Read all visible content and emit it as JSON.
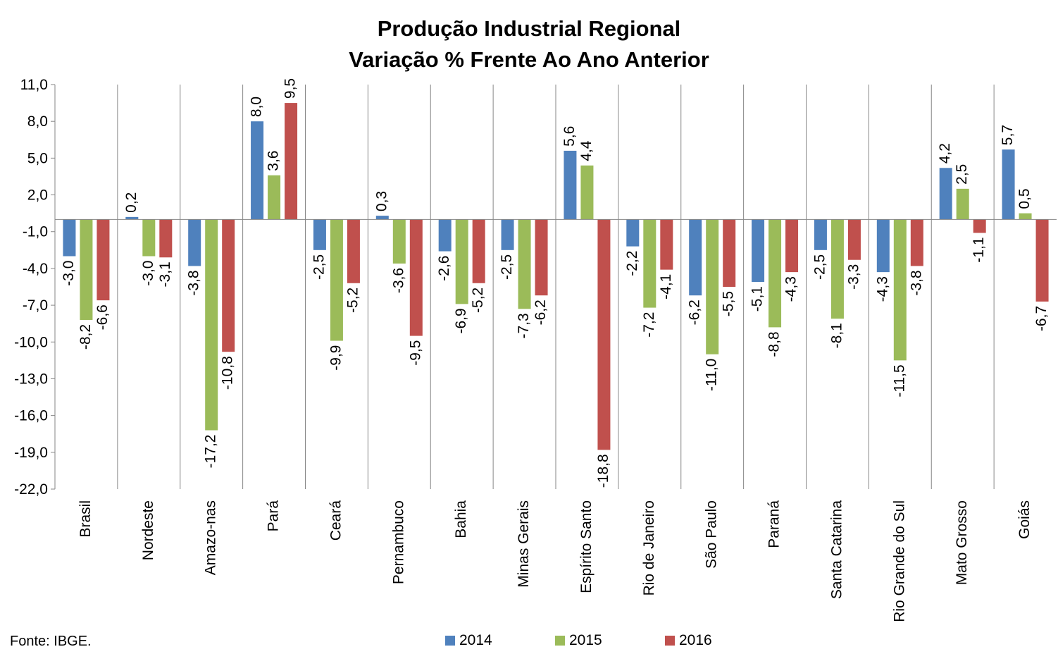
{
  "title": "Produção Industrial Regional",
  "subtitle": "Variação % Frente Ao Ano Anterior",
  "source": "Fonte: IBGE.",
  "colors": {
    "2014": "#4F81BD",
    "2015": "#9BBB59",
    "2016": "#C0504D",
    "axis": "#868686"
  },
  "chart_data": {
    "type": "bar",
    "title": "Produção Industrial Regional",
    "subtitle": "Variação % Frente Ao Ano Anterior",
    "categories": [
      "Brasil",
      "Nordeste",
      "Amazo-nas",
      "Pará",
      "Ceará",
      "Pernambuco",
      "Bahia",
      "Minas Gerais",
      "Espírito Santo",
      "Rio de Janeiro",
      "São Paulo",
      "Paraná",
      "Santa Catarina",
      "Rio Grande do Sul",
      "Mato Grosso",
      "Goiás"
    ],
    "series": [
      {
        "name": "2014",
        "values": [
          -3.0,
          0.2,
          -3.8,
          8.0,
          -2.5,
          0.3,
          -2.6,
          -2.5,
          5.6,
          -2.2,
          -6.2,
          -5.1,
          -2.5,
          -4.3,
          4.2,
          5.7
        ],
        "labels": [
          "-3,0",
          "0,2",
          "-3,8",
          "8,0",
          "-2,5",
          "0,3",
          "-2,6",
          "-2,5",
          "5,6",
          "-2,2",
          "-6,2",
          "-5,1",
          "-2,5",
          "-4,3",
          "4,2",
          "5,7"
        ]
      },
      {
        "name": "2015",
        "values": [
          -8.2,
          -3.0,
          -17.2,
          3.6,
          -9.9,
          -3.6,
          -6.9,
          -7.3,
          4.4,
          -7.2,
          -11.0,
          -8.8,
          -8.1,
          -11.5,
          2.5,
          0.5
        ],
        "labels": [
          "-8,2",
          "-3,0",
          "-17,2",
          "3,6",
          "-9,9",
          "-3,6",
          "-6,9",
          "-7,3",
          "4,4",
          "-7,2",
          "-11,0",
          "-8,8",
          "-8,1",
          "-11,5",
          "2,5",
          "0,5"
        ]
      },
      {
        "name": "2016",
        "values": [
          -6.6,
          -3.1,
          -10.8,
          9.5,
          -5.2,
          -9.5,
          -5.2,
          -6.2,
          -18.8,
          -4.1,
          -5.5,
          -4.3,
          -3.3,
          -3.8,
          -1.1,
          -6.7
        ],
        "labels": [
          "-6,6",
          "-3,1",
          "-10,8",
          "9,5",
          "-5,2",
          "-9,5",
          "-5,2",
          "-6,2",
          "-18,8",
          "-4,1",
          "-5,5",
          "-4,3",
          "-3,3",
          "-3,8",
          "-1,1",
          "-6,7"
        ]
      }
    ],
    "ylim": [
      -22,
      11
    ],
    "yticks": [
      11,
      8,
      5,
      2,
      -1,
      -4,
      -7,
      -10,
      -13,
      -16,
      -19,
      -22
    ],
    "ytick_labels": [
      "11,0",
      "8,0",
      "5,0",
      "2,0",
      "-1,0",
      "-4,0",
      "-7,0",
      "-10,0",
      "-13,0",
      "-16,0",
      "-19,0",
      "-22,0"
    ],
    "grid": false,
    "legend_position": "bottom"
  }
}
